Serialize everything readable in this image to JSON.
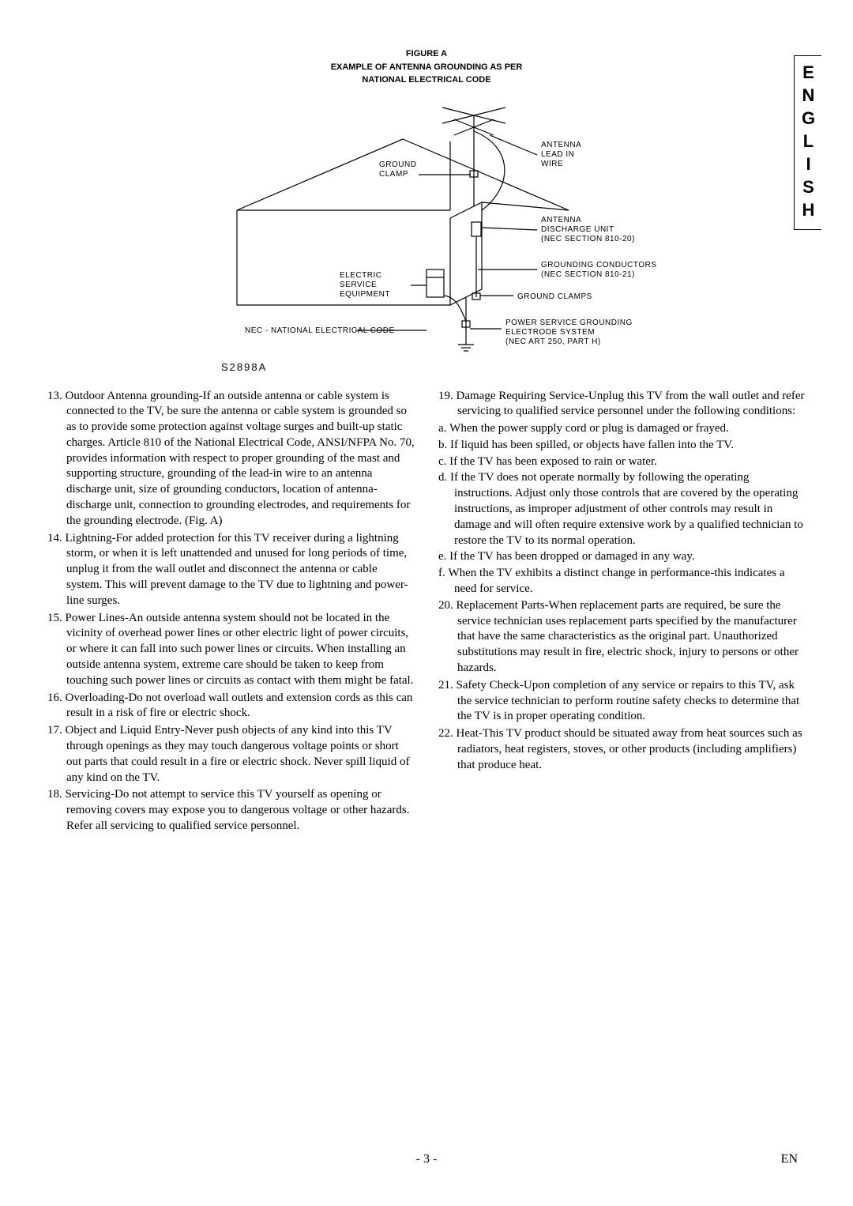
{
  "side_tab": "ENGLISH",
  "figure": {
    "title_line1": "FIGURE A",
    "title_line2": "EXAMPLE OF ANTENNA GROUNDING AS PER",
    "title_line3": "NATIONAL ELECTRICAL CODE",
    "labels": {
      "antenna_lead": "ANTENNA LEAD IN WIRE",
      "ground_clamp_top": "GROUND CLAMP",
      "antenna_discharge": "ANTENNA DISCHARGE UNIT (NEC SECTION 810-20)",
      "electric_service": "ELECTRIC SERVICE EQUIPMENT",
      "grounding_conductors": "GROUNDING CONDUCTORS (NEC SECTION 810-21)",
      "ground_clamps": "GROUND CLAMPS",
      "nec_note": "NEC - NATIONAL ELECTRICAL CODE",
      "power_service": "POWER SERVICE GROUNDING ELECTRODE SYSTEM (NEC ART 250, PART H)"
    },
    "s_code": "S2898A",
    "colors": {
      "stroke": "#000000",
      "bg": "#ffffff"
    },
    "line_width": 1.2
  },
  "left_items": [
    {
      "n": "13.",
      "text": "Outdoor Antenna grounding-If an outside antenna or cable system is connected to the TV, be sure the antenna or cable system is grounded so as to provide some protection against voltage surges and built-up static charges. Article 810 of the National Electrical Code, ANSI/NFPA No. 70, provides information with respect to proper grounding of the mast and supporting structure, grounding of the lead-in wire to an antenna discharge unit, size of grounding conductors, location of antenna-discharge unit, connection to grounding electrodes, and requirements for the grounding electrode. (Fig. A)"
    },
    {
      "n": "14.",
      "text": "Lightning-For added protection for this TV receiver during a lightning storm, or when it is left unattended and unused for long periods of time, unplug it from the wall outlet and disconnect the antenna or cable system. This will prevent damage to the TV due to lightning and power-line surges."
    },
    {
      "n": "15.",
      "text": "Power Lines-An outside antenna system should not be located in the vicinity of overhead power lines or other electric light of power circuits, or where it can fall into such power lines or circuits. When installing an outside antenna system, extreme care should be taken to keep from touching such power lines or circuits as contact with them might be fatal."
    },
    {
      "n": "16.",
      "text": "Overloading-Do not overload wall outlets and extension cords as this can result in a risk of fire or electric shock."
    },
    {
      "n": "17.",
      "text": "Object and Liquid Entry-Never push objects of any kind into this TV through openings as they may touch dangerous voltage points or short out parts that could result in a fire or electric shock. Never spill liquid of any kind on the TV."
    },
    {
      "n": "18.",
      "text": "Servicing-Do not attempt to service this TV yourself as opening or removing covers may expose you to dangerous voltage or other hazards. Refer all servicing to qualified service personnel."
    }
  ],
  "right_items": [
    {
      "n": "19.",
      "text": "Damage Requiring Service-Unplug this TV from the wall outlet and refer servicing to qualified service personnel under the following conditions:",
      "subs": [
        {
          "n": "a.",
          "text": "When the power supply cord or plug is damaged or frayed."
        },
        {
          "n": "b.",
          "text": "If liquid has been spilled, or objects have fallen into the TV."
        },
        {
          "n": "c.",
          "text": "If the TV has been exposed to rain or water."
        },
        {
          "n": "d.",
          "text": "If the TV does not operate normally by following the operating instructions. Adjust only those controls that are covered by the operating instructions, as improper adjustment of other controls may result in damage and will often require extensive work by a qualified technician to restore the TV to its normal operation."
        },
        {
          "n": "e.",
          "text": "If the TV has been dropped or damaged in any way."
        },
        {
          "n": "f.",
          "text": "When the TV exhibits a distinct change in performance-this indicates a need for service."
        }
      ]
    },
    {
      "n": "20.",
      "text": "Replacement Parts-When replacement parts are required, be sure the service technician uses replacement parts specified by the manufacturer that have the same characteristics as the original part. Unauthorized substitutions may result in fire, electric shock, injury to persons or other hazards."
    },
    {
      "n": "21.",
      "text": "Safety Check-Upon completion of any service or repairs to this TV, ask the service technician to perform routine safety checks to determine that the TV is in proper operating condition."
    },
    {
      "n": "22.",
      "text": "Heat-This TV product should be situated away from heat sources such as radiators, heat registers, stoves, or other products (including amplifiers) that produce heat."
    }
  ],
  "footer": {
    "page": "- 3 -",
    "lang": "EN"
  }
}
